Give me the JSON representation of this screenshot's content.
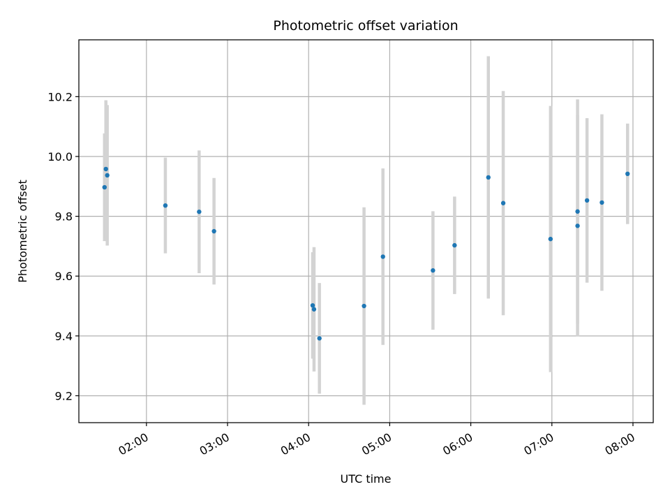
{
  "chart_data": {
    "type": "scatter",
    "title": "Photometric offset variation",
    "xlabel": "UTC time",
    "ylabel": "Photometric offset",
    "xlim": [
      "01:10",
      "08:15"
    ],
    "ylim": [
      9.11,
      10.39
    ],
    "x_ticks": [
      "02:00",
      "03:00",
      "04:00",
      "05:00",
      "06:00",
      "07:00",
      "08:00"
    ],
    "y_ticks": [
      9.2,
      9.4,
      9.6,
      9.8,
      10.0,
      10.2
    ],
    "y_tick_labels": [
      "9.2",
      "9.4",
      "9.6",
      "9.8",
      "10.0",
      "10.2"
    ],
    "grid": true,
    "marker_color": "#1f77b4",
    "errorbar_color": "#d3d3d3",
    "points": [
      {
        "x": "01:29",
        "y": 9.897,
        "err": 0.18
      },
      {
        "x": "01:30",
        "y": 9.958,
        "err": 0.23
      },
      {
        "x": "01:31",
        "y": 9.937,
        "err": 0.235
      },
      {
        "x": "02:14",
        "y": 9.836,
        "err": 0.16
      },
      {
        "x": "02:39",
        "y": 9.815,
        "err": 0.205
      },
      {
        "x": "02:50",
        "y": 9.75,
        "err": 0.178
      },
      {
        "x": "04:03",
        "y": 9.502,
        "err": 0.178
      },
      {
        "x": "04:04",
        "y": 9.489,
        "err": 0.208
      },
      {
        "x": "04:08",
        "y": 9.392,
        "err": 0.185
      },
      {
        "x": "04:41",
        "y": 9.5,
        "err": 0.33
      },
      {
        "x": "04:55",
        "y": 9.665,
        "err": 0.295
      },
      {
        "x": "05:32",
        "y": 9.619,
        "err": 0.198
      },
      {
        "x": "05:48",
        "y": 9.703,
        "err": 0.163
      },
      {
        "x": "06:13",
        "y": 9.93,
        "err": 0.405
      },
      {
        "x": "06:24",
        "y": 9.844,
        "err": 0.375
      },
      {
        "x": "06:59",
        "y": 9.724,
        "err": 0.445
      },
      {
        "x": "07:19",
        "y": 9.768,
        "err": 0.37
      },
      {
        "x": "07:19",
        "y": 9.816,
        "err": 0.375
      },
      {
        "x": "07:26",
        "y": 9.853,
        "err": 0.275
      },
      {
        "x": "07:37",
        "y": 9.846,
        "err": 0.295
      },
      {
        "x": "07:56",
        "y": 9.942,
        "err": 0.168
      }
    ]
  }
}
